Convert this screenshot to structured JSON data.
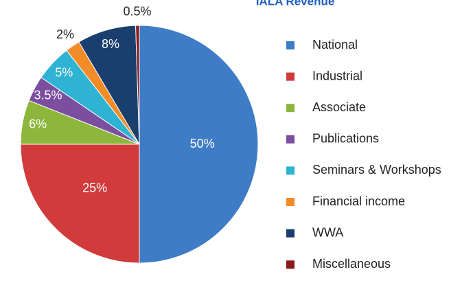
{
  "chart_data": {
    "type": "pie",
    "title": "IALA Revenue",
    "categories": [
      "National",
      "Industrial",
      "Associate",
      "Publications",
      "Seminars & Workshops",
      "Financial income",
      "WWA",
      "Miscellaneous"
    ],
    "values": [
      50,
      25,
      6,
      3.5,
      5,
      2,
      8,
      0.5
    ],
    "value_labels": [
      "50%",
      "25%",
      "6%",
      "3.5%",
      "5%",
      "2%",
      "8%",
      "0.5%"
    ],
    "colors": [
      "#3f7cc6",
      "#d13b3b",
      "#8db63c",
      "#7b4ea0",
      "#2fb3d3",
      "#f28c28",
      "#1a3f6f",
      "#8b1a1a"
    ],
    "legend": "right"
  }
}
